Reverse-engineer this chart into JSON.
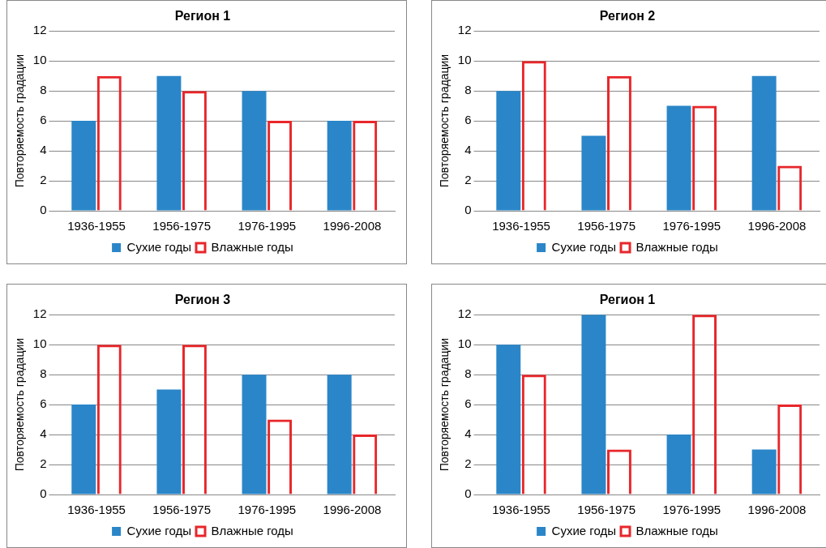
{
  "chart_data": [
    {
      "type": "bar",
      "title": "Регион 1",
      "ylabel": "Повторяемость градации",
      "categories": [
        "1936-1955",
        "1956-1975",
        "1976-1995",
        "1996-2008"
      ],
      "series": [
        {
          "name": "Сухие годы",
          "color": "#2a86c8",
          "values": [
            6,
            9,
            8,
            6
          ]
        },
        {
          "name": "Влажные годы",
          "color": "#e8262a",
          "values": [
            9,
            8,
            6,
            6
          ]
        }
      ],
      "ylim": [
        0,
        12
      ],
      "yticks": [
        0,
        2,
        4,
        6,
        8,
        10,
        12
      ],
      "grid": "y",
      "legend": "bottom"
    },
    {
      "type": "bar",
      "title": "Регион 2",
      "ylabel": "Повторяемость градации",
      "categories": [
        "1936-1955",
        "1956-1975",
        "1976-1995",
        "1996-2008"
      ],
      "series": [
        {
          "name": "Сухие годы",
          "color": "#2a86c8",
          "values": [
            8,
            5,
            7,
            9
          ]
        },
        {
          "name": "Влажные годы",
          "color": "#e8262a",
          "values": [
            10,
            9,
            7,
            3
          ]
        }
      ],
      "ylim": [
        0,
        12
      ],
      "yticks": [
        0,
        2,
        4,
        6,
        8,
        10,
        12
      ],
      "grid": "y",
      "legend": "bottom"
    },
    {
      "type": "bar",
      "title": "Регион 3",
      "ylabel": "Повторяемость градации",
      "categories": [
        "1936-1955",
        "1956-1975",
        "1976-1995",
        "1996-2008"
      ],
      "series": [
        {
          "name": "Сухие годы",
          "color": "#2a86c8",
          "values": [
            6,
            7,
            8,
            8
          ]
        },
        {
          "name": "Влажные годы",
          "color": "#e8262a",
          "values": [
            10,
            10,
            5,
            4
          ]
        }
      ],
      "ylim": [
        0,
        12
      ],
      "yticks": [
        0,
        2,
        4,
        6,
        8,
        10,
        12
      ],
      "grid": "y",
      "legend": "bottom"
    },
    {
      "type": "bar",
      "title": "Регион 1",
      "ylabel": "Повторяемость градации",
      "categories": [
        "1936-1955",
        "1956-1975",
        "1976-1995",
        "1996-2008"
      ],
      "series": [
        {
          "name": "Сухие годы",
          "color": "#2a86c8",
          "values": [
            10,
            12,
            4,
            3
          ]
        },
        {
          "name": "Влажные годы",
          "color": "#e8262a",
          "values": [
            8,
            3,
            12,
            6
          ]
        }
      ],
      "ylim": [
        0,
        12
      ],
      "yticks": [
        0,
        2,
        4,
        6,
        8,
        10,
        12
      ],
      "grid": "y",
      "legend": "bottom"
    }
  ]
}
